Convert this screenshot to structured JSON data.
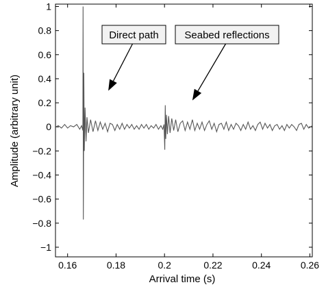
{
  "chart_data": {
    "type": "line",
    "xlabel": "Arrival time (s)",
    "ylabel": "Amplitude (arbitrary unit)",
    "xlim": [
      0.155,
      0.261
    ],
    "ylim": [
      -1.08,
      1.02
    ],
    "xticks": [
      0.16,
      0.18,
      0.2,
      0.22,
      0.24,
      0.26
    ],
    "xtick_labels": [
      "0.16",
      "0.18",
      "0.2",
      "0.22",
      "0.24",
      "0.26"
    ],
    "yticks": [
      1,
      0.8,
      0.6,
      0.4,
      0.2,
      0,
      -0.2,
      -0.4,
      -0.6,
      -0.8,
      -1
    ],
    "ytick_labels": [
      "1",
      "0.8",
      "0.6",
      "0.4",
      "0.2",
      "0",
      "−0.2",
      "−0.4",
      "−0.6",
      "−0.8",
      "−1"
    ],
    "grid": false,
    "line_color": "#555555",
    "series": [
      {
        "x": [
          0.155,
          0.1562,
          0.1575,
          0.1588,
          0.16,
          0.1612,
          0.1625,
          0.1638,
          0.165,
          0.1658,
          0.1663,
          0.1664,
          0.1665,
          0.1667,
          0.1669,
          0.1672,
          0.1676,
          0.168,
          0.1686,
          0.1695,
          0.1705,
          0.1715,
          0.1725,
          0.1735,
          0.1745,
          0.1755,
          0.1765,
          0.1775,
          0.1785,
          0.1795,
          0.1805,
          0.1815,
          0.1825,
          0.1835,
          0.1845,
          0.1855,
          0.1865,
          0.1875,
          0.1885,
          0.1895,
          0.1905,
          0.1915,
          0.1925,
          0.1935,
          0.1945,
          0.1955,
          0.1965,
          0.1975,
          0.1985,
          0.1993,
          0.1998,
          0.2001,
          0.2003,
          0.2005,
          0.2008,
          0.2012,
          0.2017,
          0.2023,
          0.203,
          0.2038,
          0.2046,
          0.2055,
          0.2065,
          0.2075,
          0.2085,
          0.2095,
          0.2105,
          0.2115,
          0.2125,
          0.2135,
          0.2145,
          0.2155,
          0.2165,
          0.2175,
          0.2185,
          0.2195,
          0.2205,
          0.2215,
          0.2225,
          0.2235,
          0.2245,
          0.2255,
          0.2265,
          0.2275,
          0.2285,
          0.2295,
          0.2305,
          0.2315,
          0.2325,
          0.2335,
          0.2345,
          0.2355,
          0.2365,
          0.2375,
          0.2385,
          0.2395,
          0.2405,
          0.2415,
          0.2425,
          0.2435,
          0.2445,
          0.2455,
          0.2465,
          0.2475,
          0.2485,
          0.2495,
          0.2505,
          0.2515,
          0.2525,
          0.2535,
          0.2545,
          0.2555,
          0.2565,
          0.2575,
          0.2585,
          0.2595,
          0.261
        ],
        "y": [
          0.0,
          0.01,
          -0.01,
          0.02,
          -0.01,
          0.01,
          0.0,
          0.02,
          -0.02,
          0.01,
          -0.03,
          1.0,
          -0.77,
          0.45,
          -0.2,
          0.16,
          -0.12,
          0.08,
          -0.05,
          0.06,
          -0.04,
          0.05,
          -0.03,
          0.04,
          -0.02,
          0.03,
          -0.04,
          0.03,
          0.02,
          -0.03,
          0.02,
          -0.02,
          0.03,
          -0.02,
          0.02,
          -0.01,
          0.02,
          -0.02,
          0.01,
          -0.02,
          0.02,
          -0.01,
          0.02,
          -0.02,
          0.01,
          -0.01,
          0.02,
          -0.02,
          0.01,
          -0.02,
          0.02,
          -0.19,
          0.18,
          -0.1,
          0.1,
          -0.06,
          0.09,
          -0.05,
          0.07,
          -0.03,
          0.06,
          -0.04,
          0.03,
          0.05,
          -0.03,
          0.04,
          -0.02,
          0.06,
          -0.03,
          0.03,
          -0.02,
          0.04,
          -0.03,
          0.02,
          0.05,
          -0.02,
          0.03,
          -0.04,
          0.02,
          0.03,
          -0.02,
          0.04,
          -0.03,
          0.02,
          -0.02,
          0.03,
          0.01,
          -0.03,
          0.02,
          -0.02,
          0.04,
          -0.02,
          0.01,
          -0.03,
          0.02,
          0.04,
          -0.02,
          0.03,
          -0.01,
          0.02,
          -0.03,
          0.01,
          0.02,
          -0.02,
          0.01,
          -0.03,
          0.02,
          -0.01,
          0.02,
          0.0,
          -0.03,
          0.02,
          0.03,
          -0.02,
          0.02,
          -0.01,
          0.01
        ]
      }
    ],
    "annotations": [
      {
        "text": "Direct path",
        "arrow_to": [
          0.1768,
          0.3
        ]
      },
      {
        "text": "Seabed reflections",
        "arrow_to": [
          0.2115,
          0.22
        ]
      }
    ]
  }
}
